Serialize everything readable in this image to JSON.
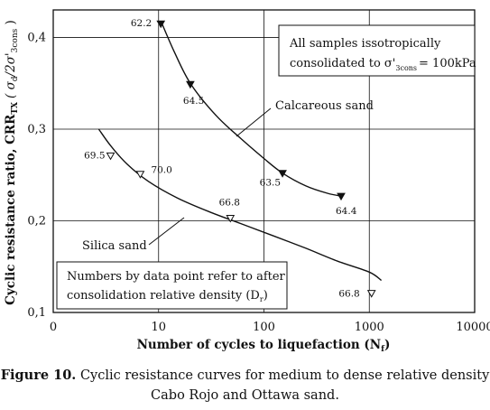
{
  "chart_data": {
    "type": "scatter",
    "xscale": "log",
    "xlim": [
      0,
      10000
    ],
    "ylim": [
      0.1,
      0.43
    ],
    "xticks": [
      "0",
      "10",
      "100",
      "1000",
      "10000"
    ],
    "yticks": [
      "0,1",
      "0,2",
      "0,3",
      "0,4"
    ],
    "grid": "major",
    "xlabel": "Number of cycles to liquefaction (N",
    "xlabel_sub": "f",
    "ylabel_main": "Cyclic resistance ratio, CRR",
    "ylabel_sub": "TX",
    "ylabel_paren": "( σ",
    "ylabel_paren_sub": "d",
    "ylabel_paren_mid": "/2σ'",
    "ylabel_paren_sub2": "3cons",
    "ylabel_close": " )",
    "series": [
      {
        "name": "Calcareous sand",
        "marker": "filled-triangle-down",
        "points": [
          {
            "x": 10.5,
            "y": 0.415,
            "label": "62.2"
          },
          {
            "x": 20,
            "y": 0.349,
            "label": "64.5"
          },
          {
            "x": 150,
            "y": 0.252,
            "label": "63.5"
          },
          {
            "x": 540,
            "y": 0.227,
            "label": "64.4"
          }
        ],
        "curve": [
          [
            10.5,
            0.418
          ],
          [
            14,
            0.385
          ],
          [
            20,
            0.35
          ],
          [
            35,
            0.315
          ],
          [
            60,
            0.29
          ],
          [
            100,
            0.268
          ],
          [
            150,
            0.252
          ],
          [
            250,
            0.238
          ],
          [
            400,
            0.23
          ],
          [
            540,
            0.227
          ]
        ]
      },
      {
        "name": "Silica sand",
        "marker": "open-triangle-down",
        "points": [
          {
            "x": 3.5,
            "y": 0.271,
            "label": "69.5"
          },
          {
            "x": 6.7,
            "y": 0.251,
            "label": "70.0"
          },
          {
            "x": 48,
            "y": 0.203,
            "label": "66.8"
          },
          {
            "x": 1050,
            "y": 0.121,
            "label": "66.8"
          }
        ],
        "curve": [
          [
            2.7,
            0.3
          ],
          [
            3.5,
            0.282
          ],
          [
            5,
            0.262
          ],
          [
            8,
            0.243
          ],
          [
            15,
            0.225
          ],
          [
            30,
            0.21
          ],
          [
            60,
            0.197
          ],
          [
            120,
            0.184
          ],
          [
            250,
            0.17
          ],
          [
            500,
            0.156
          ],
          [
            1000,
            0.144
          ],
          [
            1300,
            0.135
          ]
        ]
      }
    ],
    "annotations": {
      "note_line1": "All samples issotropically",
      "note_line2_pre": "consolidated to σ'",
      "note_line2_sub": "3cons",
      "note_line2_post": "= 100kPa",
      "calcareous_label": "Calcareous sand",
      "silica_label": "Silica sand",
      "density_line1": "Numbers by data point refer to after",
      "density_line2_pre": "consolidation relative density (D",
      "density_line2_sub": "r",
      "density_line2_post": ")"
    }
  },
  "caption": {
    "label": "Figure 10.",
    "line1": " Cyclic resistance curves for medium to dense relative density",
    "line2": "Cabo Rojo and Ottawa sand."
  }
}
